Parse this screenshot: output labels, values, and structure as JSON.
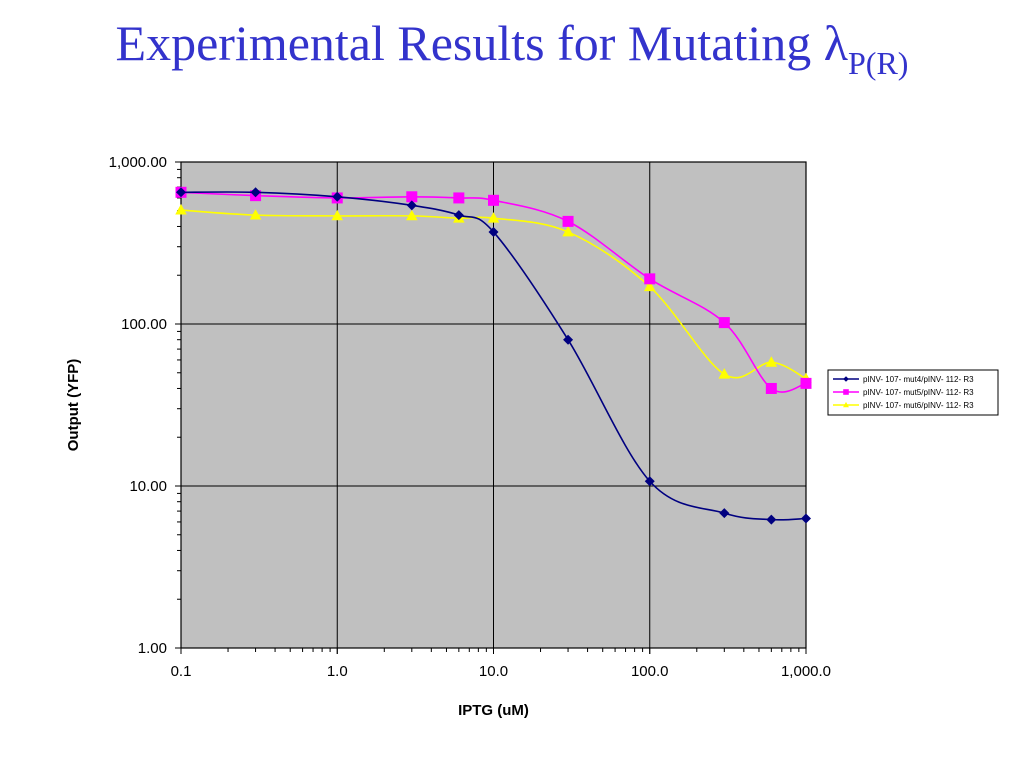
{
  "slide": {
    "title_main": "Experimental Results for Mutating ",
    "title_symbol": "λ",
    "title_sub": "P(R)"
  },
  "chart_data": {
    "type": "line",
    "title": "",
    "xlabel": "IPTG (uM)",
    "ylabel": "Output (YFP)",
    "xscale": "log",
    "yscale": "log",
    "xlim": [
      0.1,
      1000
    ],
    "ylim": [
      1,
      1000
    ],
    "x_ticks": [
      {
        "value": 0.1,
        "label": "0.1"
      },
      {
        "value": 1,
        "label": "1.0"
      },
      {
        "value": 10,
        "label": "10.0"
      },
      {
        "value": 100,
        "label": "100.0"
      },
      {
        "value": 1000,
        "label": "1,000.0"
      }
    ],
    "y_ticks": [
      {
        "value": 1,
        "label": "1.00"
      },
      {
        "value": 10,
        "label": "10.00"
      },
      {
        "value": 100,
        "label": "100.00"
      },
      {
        "value": 1000,
        "label": "1,000.00"
      }
    ],
    "grid": true,
    "plot_background": "#c0c0c0",
    "legend_position": "right",
    "series": [
      {
        "name": "pINV- 107- mut4/pINV- 112- R3",
        "color": "#000080",
        "marker": "diamond",
        "x": [
          0.1,
          0.3,
          1,
          3,
          6,
          10,
          30,
          100,
          300,
          600,
          1000
        ],
        "y": [
          650,
          650,
          610,
          540,
          470,
          370,
          80,
          10.7,
          6.8,
          6.2,
          6.3
        ]
      },
      {
        "name": "pINV- 107- mut5/pINV- 112- R3",
        "color": "#ff00ff",
        "marker": "square",
        "x": [
          0.1,
          0.3,
          1,
          3,
          6,
          10,
          30,
          100,
          300,
          600,
          1000
        ],
        "y": [
          650,
          620,
          600,
          610,
          600,
          580,
          430,
          190,
          102,
          40,
          43
        ]
      },
      {
        "name": "pINV- 107- mut6/pINV- 112- R3",
        "color": "#ffff00",
        "marker": "triangle",
        "x": [
          0.1,
          0.3,
          1,
          3,
          6,
          10,
          30,
          100,
          300,
          600,
          1000
        ],
        "y": [
          505,
          470,
          465,
          465,
          450,
          450,
          370,
          170,
          49,
          58,
          46
        ]
      }
    ]
  }
}
